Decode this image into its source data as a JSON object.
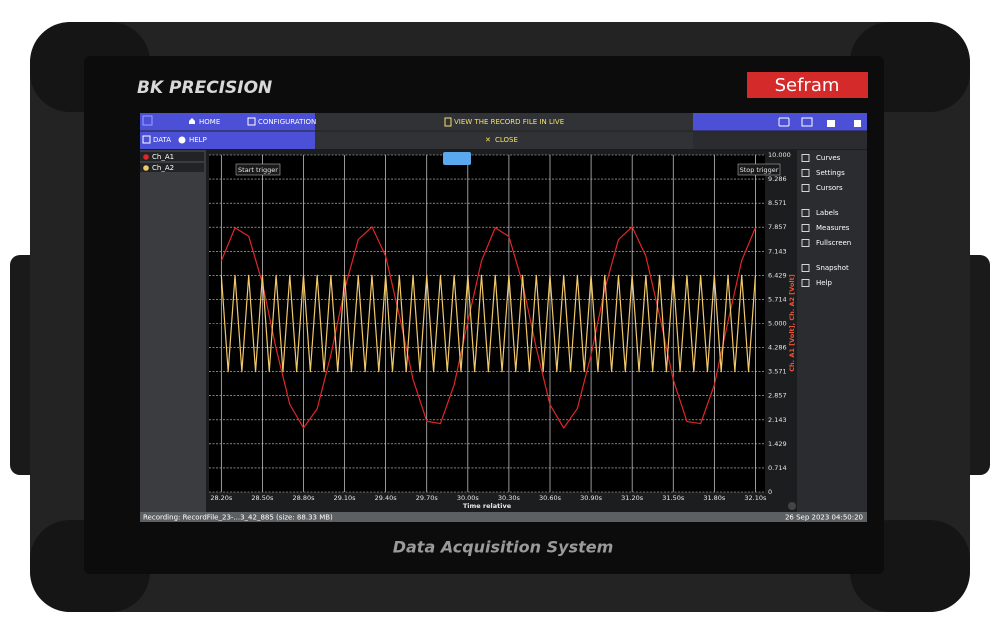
{
  "device": {
    "brand": "BK PRECISION",
    "partner": "Sefram",
    "caption": "Data Acquisition System"
  },
  "toolbar": {
    "home": "HOME",
    "configuration": "CONFIGURATION",
    "view_live": "VIEW THE RECORD FILE IN LIVE",
    "close": "CLOSE",
    "data": "DATA",
    "help": "HELP"
  },
  "sidebar": [
    "Curves",
    "Settings",
    "Cursors",
    "Labels",
    "Measures",
    "Fullscreen",
    "Snapshot",
    "Help"
  ],
  "status": {
    "file": "Recording: RecordFile_23-...3_42_885 (size: 88.33 MB)",
    "datetime": "26 Sep 2023 04:50:20"
  },
  "chart_data": {
    "type": "line",
    "xlabel": "Time relative",
    "ylabel": "Ch. A1 [Volt], Ch. A2 [Volt]",
    "annotations": [
      "Start trigger",
      "Stop trigger"
    ],
    "grid": true,
    "xlim": [
      28.11,
      32.17
    ],
    "ylim": [
      0,
      10
    ],
    "xticks": [
      {
        "value": 28.2,
        "label": "28.20s"
      },
      {
        "value": 28.5,
        "label": "28.50s"
      },
      {
        "value": 28.8,
        "label": "28.80s"
      },
      {
        "value": 29.1,
        "label": "29.10s"
      },
      {
        "value": 29.4,
        "label": "29.40s"
      },
      {
        "value": 29.7,
        "label": "29.70s"
      },
      {
        "value": 30.0,
        "label": "30.00s"
      },
      {
        "value": 30.3,
        "label": "30.30s"
      },
      {
        "value": 30.6,
        "label": "30.60s"
      },
      {
        "value": 30.9,
        "label": "30.90s"
      },
      {
        "value": 31.2,
        "label": "31.20s"
      },
      {
        "value": 31.5,
        "label": "31.50s"
      },
      {
        "value": 31.8,
        "label": "31.80s"
      },
      {
        "value": 32.1,
        "label": "32.10s"
      }
    ],
    "yticks": [
      0,
      0.714,
      1.429,
      2.143,
      2.857,
      3.571,
      4.286,
      {
        "value": 5,
        "label": "5.000"
      },
      5.714,
      6.429,
      7.143,
      7.857,
      8.571,
      9.286,
      {
        "value": 10,
        "label": "10.000"
      }
    ],
    "series": [
      {
        "name": "Ch_A1",
        "color": "#e0262a",
        "x": [
          28.2,
          28.3,
          28.4,
          28.5,
          28.6,
          28.7,
          28.8,
          28.9,
          29.0,
          29.1,
          29.2,
          29.3,
          29.4,
          29.5,
          29.6,
          29.7,
          29.8,
          29.9,
          30.0,
          30.1,
          30.2,
          30.3,
          30.4,
          30.5,
          30.6,
          30.7,
          30.8,
          30.9,
          31.0,
          31.1,
          31.2,
          31.3,
          31.4,
          31.5,
          31.6,
          31.7,
          31.8,
          31.9,
          32.0,
          32.1
        ],
        "values": [
          6.86,
          7.84,
          7.59,
          6.2,
          4.26,
          2.6,
          1.9,
          2.47,
          4.07,
          6.01,
          7.49,
          7.87,
          7.0,
          5.24,
          3.34,
          2.1,
          2.03,
          3.18,
          5.05,
          6.86,
          7.84,
          7.58,
          6.19,
          4.27,
          2.59,
          1.9,
          2.48,
          4.07,
          6.02,
          7.49,
          7.87,
          7.0,
          5.24,
          3.33,
          2.09,
          2.03,
          3.18,
          5.06,
          6.87,
          7.84
        ]
      },
      {
        "name": "Ch_A2",
        "color": "#f2c96a",
        "x": [
          28.2,
          28.25,
          28.3,
          28.35,
          28.4,
          28.45,
          28.5,
          28.55,
          28.6,
          28.65,
          28.7,
          28.75,
          28.8,
          28.85,
          28.9,
          28.95,
          29.0,
          29.05,
          29.1,
          29.15,
          29.2,
          29.25,
          29.3,
          29.35,
          29.4,
          29.45,
          29.5,
          29.55,
          29.6,
          29.65,
          29.7,
          29.75,
          29.8,
          29.85,
          29.9,
          29.95,
          30.0,
          30.05,
          30.1,
          30.15,
          30.2,
          30.25,
          30.3,
          30.35,
          30.4,
          30.45,
          30.5,
          30.55,
          30.6,
          30.65,
          30.7,
          30.75,
          30.8,
          30.85,
          30.9,
          30.95,
          31.0,
          31.05,
          31.1,
          31.15,
          31.2,
          31.25,
          31.3,
          31.35,
          31.4,
          31.45,
          31.5,
          31.55,
          31.6,
          31.65,
          31.7,
          31.75,
          31.8,
          31.85,
          31.9,
          31.95,
          32.0,
          32.05,
          32.1
        ],
        "values": [
          6.43,
          3.57,
          6.43,
          3.57,
          6.43,
          3.57,
          6.43,
          3.57,
          6.43,
          3.57,
          6.43,
          3.57,
          6.43,
          3.57,
          6.43,
          3.57,
          6.43,
          3.57,
          6.43,
          3.57,
          6.43,
          3.57,
          6.43,
          3.57,
          6.43,
          3.57,
          6.43,
          3.57,
          6.43,
          3.57,
          6.43,
          3.57,
          6.43,
          3.57,
          6.43,
          3.57,
          6.43,
          3.57,
          6.43,
          3.57,
          6.43,
          3.57,
          6.43,
          3.57,
          6.43,
          3.57,
          6.43,
          3.57,
          6.43,
          3.57,
          6.43,
          3.57,
          6.43,
          3.57,
          6.43,
          3.57,
          6.43,
          3.57,
          6.43,
          3.57,
          6.43,
          3.57,
          6.43,
          3.57,
          6.43,
          3.57,
          6.43,
          3.57,
          6.43,
          3.57,
          6.43,
          3.57,
          6.43,
          3.57,
          6.43,
          3.57,
          6.43,
          3.57,
          6.43
        ]
      }
    ]
  }
}
